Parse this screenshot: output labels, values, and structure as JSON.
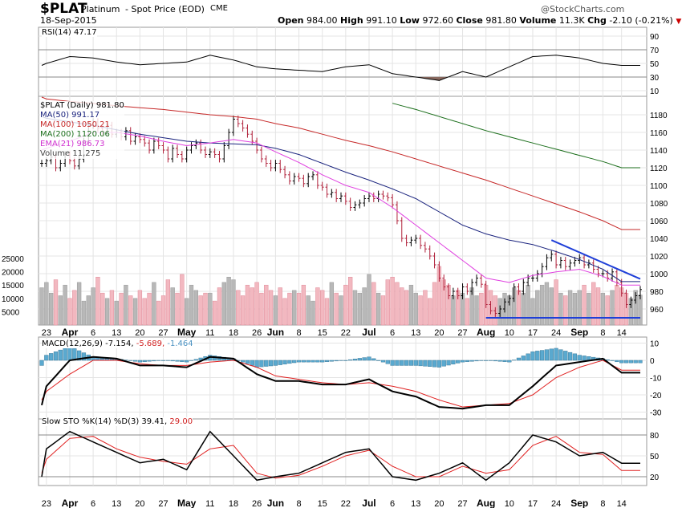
{
  "header": {
    "symbol": "$PLAT",
    "name": "Platinum",
    "desc": "- Spot Price (EOD)",
    "exchange": "CME",
    "date": "18-Sep-2015",
    "watermark": "@StockCharts.com",
    "open_label": "Open",
    "open": "984.00",
    "high_label": "High",
    "high": "991.10",
    "low_label": "Low",
    "low": "972.60",
    "close_label": "Close",
    "close": "981.80",
    "volume_label": "Volume",
    "volume": "11.3K",
    "chg_label": "Chg",
    "chg": "-2.10 (-0.21%)"
  },
  "legend": {
    "rsi": "RSI(14) 47.17",
    "price": "$PLAT (Daily) 981.80",
    "ma50": "MA(50) 991.17",
    "ma100": "MA(100) 1050.21",
    "ma200": "MA(200) 1120.06",
    "ema21": "EMA(21) 986.73",
    "volume": "Volume 11,275",
    "macd": "MACD(12,26,9) -7.154,",
    "macd_signal": "-5.689,",
    "macd_hist": "-1.464",
    "sto": "Slow STO %K(14) %D(3) 39.41,",
    "sto_d": "29.00"
  },
  "colors": {
    "ma50": "#1a237e",
    "ma100": "#c62828",
    "ma200": "#1b6e1b",
    "ema21": "#e040e0",
    "up_bar": "#000000",
    "down_bar": "#b0203a",
    "vol_up": "#b8b8b8",
    "vol_down": "#f2b8c0",
    "hist": "#5aa9cf",
    "trendline": "#1f3fd8",
    "signal": "#e02020"
  },
  "chart_data": [
    {
      "type": "ohlc",
      "title": "$PLAT (Daily)",
      "ylim": [
        940,
        1190
      ],
      "yticks": [
        960,
        980,
        1000,
        1020,
        1040,
        1060,
        1080,
        1100,
        1120,
        1140,
        1160,
        1180
      ],
      "volume_ticks": [
        5000,
        10000,
        15000,
        20000,
        25000
      ],
      "weeks": [
        {
          "date": "2015-03-20",
          "closes": [
            1125
          ],
          "volume": [
            14000
          ]
        },
        {
          "date": "2015-03-23",
          "closes": [
            1128,
            1132,
            1120,
            1125,
            1135
          ],
          "volume": [
            16000,
            12000,
            17000,
            11000,
            15000
          ]
        },
        {
          "date": "2015-03-30",
          "closes": [
            1128,
            1122,
            1130,
            1150,
            1168
          ],
          "volume": [
            10000,
            13000,
            16000,
            9000,
            11000
          ]
        },
        {
          "date": "2015-04-06",
          "closes": [
            1172,
            1165,
            1160,
            1168,
            1158
          ],
          "volume": [
            14000,
            18000,
            12000,
            10000,
            13000
          ]
        },
        {
          "date": "2015-04-13",
          "closes": [
            1160,
            1155,
            1162,
            1150,
            1155
          ],
          "volume": [
            9000,
            12000,
            15000,
            11000,
            10000
          ]
        },
        {
          "date": "2015-04-20",
          "closes": [
            1152,
            1148,
            1140,
            1150,
            1145
          ],
          "volume": [
            13000,
            10000,
            12000,
            16000,
            9000
          ]
        },
        {
          "date": "2015-04-27",
          "closes": [
            1140,
            1130,
            1142,
            1135,
            1130
          ],
          "volume": [
            11000,
            17000,
            14000,
            12000,
            19000
          ]
        },
        {
          "date": "2015-05-04",
          "closes": [
            1140,
            1145,
            1148,
            1140,
            1135
          ],
          "volume": [
            10000,
            15000,
            13000,
            11000,
            12000
          ]
        },
        {
          "date": "2015-05-11",
          "closes": [
            1138,
            1135,
            1130,
            1145,
            1160
          ],
          "volume": [
            12000,
            9000,
            14000,
            16000,
            18000
          ]
        },
        {
          "date": "2015-05-18",
          "closes": [
            1175,
            1170,
            1165,
            1158,
            1150
          ],
          "volume": [
            17000,
            13000,
            11000,
            15000,
            14000
          ]
        },
        {
          "date": "2015-05-26",
          "closes": [
            1140,
            1130,
            1125,
            1120
          ],
          "volume": [
            16000,
            12000,
            15000,
            13000
          ]
        },
        {
          "date": "2015-06-01",
          "closes": [
            1125,
            1118,
            1112,
            1105,
            1110
          ],
          "volume": [
            11000,
            14000,
            10000,
            12000,
            13000
          ]
        },
        {
          "date": "2015-06-08",
          "closes": [
            1108,
            1102,
            1110,
            1112,
            1100
          ],
          "volume": [
            12000,
            15000,
            11000,
            9000,
            14000
          ]
        },
        {
          "date": "2015-06-15",
          "closes": [
            1098,
            1090,
            1092,
            1085,
            1088
          ],
          "volume": [
            13000,
            10000,
            16000,
            12000,
            11000
          ]
        },
        {
          "date": "2015-06-22",
          "closes": [
            1082,
            1075,
            1078,
            1080,
            1085
          ],
          "volume": [
            15000,
            18000,
            13000,
            12000,
            14000
          ]
        },
        {
          "date": "2015-06-29",
          "closes": [
            1088,
            1085,
            1090,
            1088,
            1086
          ],
          "volume": [
            19000,
            16000,
            12000,
            11000,
            17000
          ]
        },
        {
          "date": "2015-07-06",
          "closes": [
            1078,
            1060,
            1040,
            1035,
            1038
          ],
          "volume": [
            18000,
            16000,
            14000,
            13000,
            15000
          ]
        },
        {
          "date": "2015-07-13",
          "closes": [
            1040,
            1032,
            1028,
            1020,
            1010
          ],
          "volume": [
            12000,
            11000,
            13000,
            10000,
            16000
          ]
        },
        {
          "date": "2015-07-20",
          "closes": [
            995,
            985,
            975,
            980,
            975
          ],
          "volume": [
            22000,
            17000,
            15000,
            11000,
            13000
          ]
        },
        {
          "date": "2015-07-27",
          "closes": [
            985,
            980,
            990,
            995,
            988
          ],
          "volume": [
            12000,
            10000,
            14000,
            11000,
            12000
          ]
        },
        {
          "date": "2015-08-03",
          "closes": [
            965,
            958,
            955,
            960,
            968
          ],
          "volume": [
            15000,
            13000,
            11000,
            10000,
            12000
          ]
        },
        {
          "date": "2015-08-10",
          "closes": [
            972,
            985,
            980,
            990,
            995
          ],
          "volume": [
            11000,
            14000,
            13000,
            12000,
            15000
          ]
        },
        {
          "date": "2015-08-17",
          "closes": [
            995,
            1000,
            1008,
            1018,
            1022
          ],
          "volume": [
            10000,
            13000,
            15000,
            16000,
            14000
          ]
        },
        {
          "date": "2015-08-24",
          "closes": [
            1010,
            1015,
            1008,
            1012,
            1015
          ],
          "volume": [
            17000,
            12000,
            11000,
            13000,
            12000
          ]
        },
        {
          "date": "2015-08-31",
          "closes": [
            1018,
            1010,
            1012,
            1005,
            1000
          ],
          "volume": [
            13000,
            15000,
            12000,
            16000,
            14000
          ]
        },
        {
          "date": "2015-09-08",
          "closes": [
            1000,
            995,
            1002,
            990
          ],
          "volume": [
            12000,
            11000,
            13000,
            15000
          ]
        },
        {
          "date": "2015-09-14",
          "closes": [
            978,
            965,
            970,
            975,
            982
          ],
          "volume": [
            14000,
            12000,
            10000,
            13000,
            11275
          ]
        }
      ],
      "ma50": [
        1178,
        1176,
        1172,
        1168,
        1163,
        1158,
        1154,
        1150,
        1148,
        1147,
        1146,
        1142,
        1135,
        1125,
        1115,
        1106,
        1096,
        1085,
        1070,
        1055,
        1045,
        1038,
        1033,
        1025,
        1016,
        1005,
        991
      ],
      "ma100": [
        1200,
        1198,
        1195,
        1193,
        1190,
        1188,
        1186,
        1183,
        1180,
        1178,
        1175,
        1170,
        1165,
        1158,
        1151,
        1145,
        1138,
        1130,
        1122,
        1114,
        1106,
        1097,
        1088,
        1079,
        1070,
        1060,
        1050
      ],
      "ma200": [
        null,
        null,
        null,
        null,
        null,
        null,
        null,
        null,
        null,
        null,
        null,
        null,
        null,
        null,
        null,
        null,
        1193,
        1186,
        1178,
        1170,
        1162,
        1155,
        1148,
        1141,
        1134,
        1127,
        1120
      ],
      "ema21": [
        1140,
        1142,
        1150,
        1160,
        1160,
        1156,
        1150,
        1145,
        1148,
        1152,
        1148,
        1138,
        1126,
        1112,
        1100,
        1092,
        1075,
        1055,
        1035,
        1015,
        995,
        990,
        998,
        1002,
        1005,
        997,
        987
      ],
      "annotations": [
        {
          "type": "trendline",
          "from": [
            "2015-08-21",
            1038
          ],
          "to": [
            "2015-09-18",
            994
          ]
        },
        {
          "type": "support",
          "from": [
            "2015-08-03",
            950
          ],
          "to": [
            "2015-09-18",
            950
          ]
        }
      ],
      "x_labels": [
        {
          "text": "23",
          "date": "2015-03-23"
        },
        {
          "text": "Apr",
          "date": "2015-03-30",
          "bold": true
        },
        {
          "text": "6",
          "date": "2015-04-06"
        },
        {
          "text": "13",
          "date": "2015-04-13"
        },
        {
          "text": "20",
          "date": "2015-04-20"
        },
        {
          "text": "27",
          "date": "2015-04-27"
        },
        {
          "text": "May",
          "date": "2015-05-04",
          "bold": true
        },
        {
          "text": "11",
          "date": "2015-05-11"
        },
        {
          "text": "18",
          "date": "2015-05-18"
        },
        {
          "text": "26",
          "date": "2015-05-26"
        },
        {
          "text": "Jun",
          "date": "2015-06-01",
          "bold": true
        },
        {
          "text": "8",
          "date": "2015-06-08"
        },
        {
          "text": "15",
          "date": "2015-06-15"
        },
        {
          "text": "22",
          "date": "2015-06-22"
        },
        {
          "text": "Jul",
          "date": "2015-06-29",
          "bold": true
        },
        {
          "text": "6",
          "date": "2015-07-06"
        },
        {
          "text": "13",
          "date": "2015-07-13"
        },
        {
          "text": "20",
          "date": "2015-07-20"
        },
        {
          "text": "27",
          "date": "2015-07-27"
        },
        {
          "text": "Aug",
          "date": "2015-08-03",
          "bold": true
        },
        {
          "text": "10",
          "date": "2015-08-10"
        },
        {
          "text": "17",
          "date": "2015-08-17"
        },
        {
          "text": "24",
          "date": "2015-08-24"
        },
        {
          "text": "Sep",
          "date": "2015-08-31",
          "bold": true
        },
        {
          "text": "8",
          "date": "2015-09-08"
        },
        {
          "text": "14",
          "date": "2015-09-14"
        }
      ]
    },
    {
      "type": "line",
      "title": "RSI(14)",
      "ylim": [
        10,
        90
      ],
      "yticks": [
        10,
        30,
        50,
        70,
        90
      ],
      "values": [
        47,
        50,
        60,
        58,
        52,
        48,
        50,
        52,
        62,
        55,
        45,
        42,
        40,
        38,
        45,
        48,
        35,
        30,
        25,
        38,
        30,
        45,
        60,
        62,
        58,
        50,
        47
      ]
    },
    {
      "type": "line",
      "title": "MACD(12,26,9)",
      "ylim": [
        -33,
        12
      ],
      "yticks": [
        -30,
        -20,
        -10,
        0,
        10
      ],
      "macd": [
        -26,
        -15,
        0,
        2,
        1,
        -3,
        -3,
        -4,
        2,
        1,
        -8,
        -12,
        -12,
        -14,
        -14,
        -11,
        -18,
        -21,
        -27,
        -28,
        -26,
        -26,
        -15,
        -3,
        -1,
        1,
        -7.154
      ],
      "signal": [
        -23,
        -18,
        -8,
        0,
        0,
        -2,
        -3,
        -3,
        -1,
        0,
        -4,
        -9,
        -11,
        -13,
        -14,
        -13,
        -15,
        -18,
        -23,
        -27,
        -26,
        -25,
        -20,
        -10,
        -4,
        0,
        -5.689
      ]
    },
    {
      "type": "line",
      "title": "Slow STO %K(14) %D(3)",
      "ylim": [
        0,
        100
      ],
      "yticks": [
        20,
        50,
        80
      ],
      "k": [
        20,
        60,
        85,
        70,
        55,
        40,
        45,
        30,
        85,
        50,
        15,
        20,
        25,
        40,
        55,
        60,
        20,
        15,
        25,
        40,
        15,
        40,
        80,
        70,
        50,
        55,
        39.41
      ],
      "d": [
        25,
        45,
        75,
        78,
        60,
        48,
        42,
        38,
        60,
        65,
        25,
        18,
        22,
        35,
        50,
        58,
        35,
        20,
        20,
        35,
        25,
        30,
        65,
        78,
        55,
        52,
        29
      ]
    }
  ]
}
